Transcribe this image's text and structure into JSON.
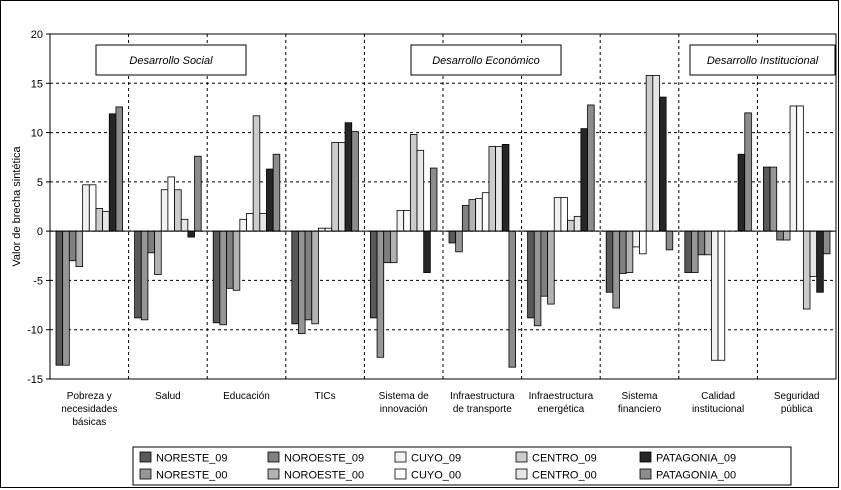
{
  "chart_data": {
    "type": "bar",
    "ylabel": "Valor de brecha sintética",
    "ylim": [
      -15,
      20
    ],
    "yticks": [
      -15,
      -10,
      -5,
      0,
      5,
      10,
      15,
      20
    ],
    "grid": true,
    "legend_position": "bottom",
    "sections": [
      {
        "label": "Desarrollo Social",
        "start": 0,
        "end": 4
      },
      {
        "label": "Desarrollo Económico",
        "start": 4,
        "end": 8
      },
      {
        "label": "Desarrollo Institucional",
        "start": 8,
        "end": 10
      }
    ],
    "categories": [
      [
        "Pobreza y",
        "necesidades",
        "básicas"
      ],
      [
        "Salud"
      ],
      [
        "Educación"
      ],
      [
        "TICs"
      ],
      [
        "Sistema de",
        "innovación"
      ],
      [
        "Infraestructura",
        "de transporte"
      ],
      [
        "Infraestructura",
        "energética"
      ],
      [
        "Sistema",
        "financiero"
      ],
      [
        "Calidad",
        "institucional"
      ],
      [
        "Seguridad",
        "pública"
      ]
    ],
    "series": [
      {
        "name": "NORESTE_09",
        "color": "#595959",
        "values": [
          -13.6,
          -8.8,
          -9.3,
          -9.4,
          -8.8,
          -1.2,
          -8.8,
          -6.2,
          -4.2,
          6.5
        ]
      },
      {
        "name": "NORESTE_00",
        "color": "#969696",
        "values": [
          -13.6,
          -9.0,
          -9.5,
          -10.4,
          -12.8,
          -2.1,
          -9.6,
          -7.8,
          -4.2,
          6.5
        ]
      },
      {
        "name": "NOROESTE_09",
        "color": "#808080",
        "values": [
          -3.0,
          -2.2,
          -5.8,
          -9.0,
          -3.2,
          2.6,
          -6.6,
          -4.3,
          -2.4,
          -0.9
        ]
      },
      {
        "name": "NOROESTE_00",
        "color": "#b2b2b2",
        "values": [
          -3.6,
          -4.4,
          -6.0,
          -9.4,
          -3.2,
          3.2,
          -7.4,
          -4.2,
          -2.4,
          -0.9
        ]
      },
      {
        "name": "CUYO_09",
        "color": "#f2f2f2",
        "values": [
          4.7,
          4.2,
          1.2,
          0.3,
          2.1,
          3.3,
          3.4,
          -1.6,
          -13.1,
          12.7
        ]
      },
      {
        "name": "CUYO_00",
        "color": "#ffffff",
        "values": [
          4.7,
          5.5,
          1.8,
          0.3,
          2.1,
          3.9,
          3.4,
          -2.3,
          -13.1,
          12.7
        ]
      },
      {
        "name": "CENTRO_09",
        "color": "#cccccc",
        "values": [
          2.3,
          4.2,
          11.7,
          9.0,
          9.8,
          8.6,
          1.1,
          15.8,
          0.0,
          -7.9
        ]
      },
      {
        "name": "CENTRO_00",
        "color": "#e6e6e6",
        "values": [
          2.0,
          1.2,
          1.8,
          9.0,
          8.2,
          8.6,
          1.5,
          15.8,
          0.0,
          -4.6
        ]
      },
      {
        "name": "PATAGONIA_09",
        "color": "#262626",
        "values": [
          11.9,
          -0.6,
          6.3,
          11.0,
          -4.2,
          8.8,
          10.4,
          13.6,
          7.8,
          -6.2
        ]
      },
      {
        "name": "PATAGONIA_00",
        "color": "#8c8c8c",
        "values": [
          12.6,
          7.6,
          7.8,
          10.1,
          6.4,
          -13.8,
          12.8,
          -1.9,
          12.0,
          -2.3
        ]
      }
    ],
    "legend_rows": [
      [
        "NORESTE_09",
        "NOROESTE_09",
        "CUYO_09",
        "CENTRO_09",
        "PATAGONIA_09"
      ],
      [
        "NORESTE_00",
        "NOROESTE_00",
        "CUYO_00",
        "CENTRO_00",
        "PATAGONIA_00"
      ]
    ]
  }
}
